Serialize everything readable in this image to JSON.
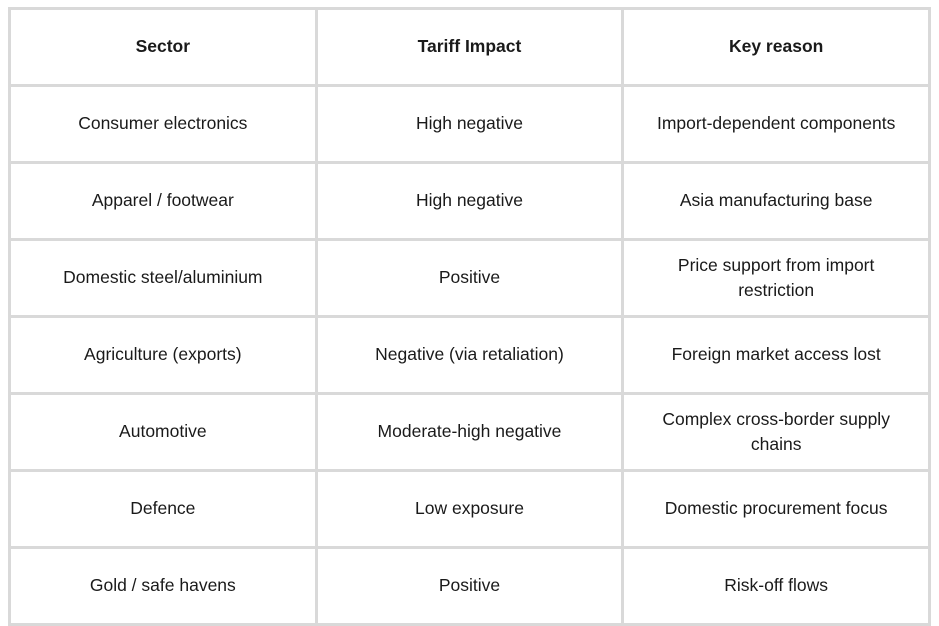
{
  "table": {
    "columns": [
      "Sector",
      "Tariff Impact",
      "Key reason"
    ],
    "rows": [
      {
        "sector": "Consumer electronics",
        "impact": "High negative",
        "reason": "Import-dependent components"
      },
      {
        "sector": "Apparel / footwear",
        "impact": "High negative",
        "reason": "Asia manufacturing base"
      },
      {
        "sector": "Domestic steel/aluminium",
        "impact": "Positive",
        "reason": "Price support from import restriction"
      },
      {
        "sector": "Agriculture (exports)",
        "impact": "Negative (via retaliation)",
        "reason": "Foreign market access lost"
      },
      {
        "sector": "Automotive",
        "impact": "Moderate-high negative",
        "reason": "Complex cross-border supply chains"
      },
      {
        "sector": "Defence",
        "impact": "Low exposure",
        "reason": "Domestic procurement focus"
      },
      {
        "sector": "Gold / safe havens",
        "impact": "Positive",
        "reason": "Risk-off flows"
      }
    ]
  },
  "colors": {
    "border": "#d9d9d9",
    "text": "#1a1a1a",
    "background": "#ffffff"
  }
}
